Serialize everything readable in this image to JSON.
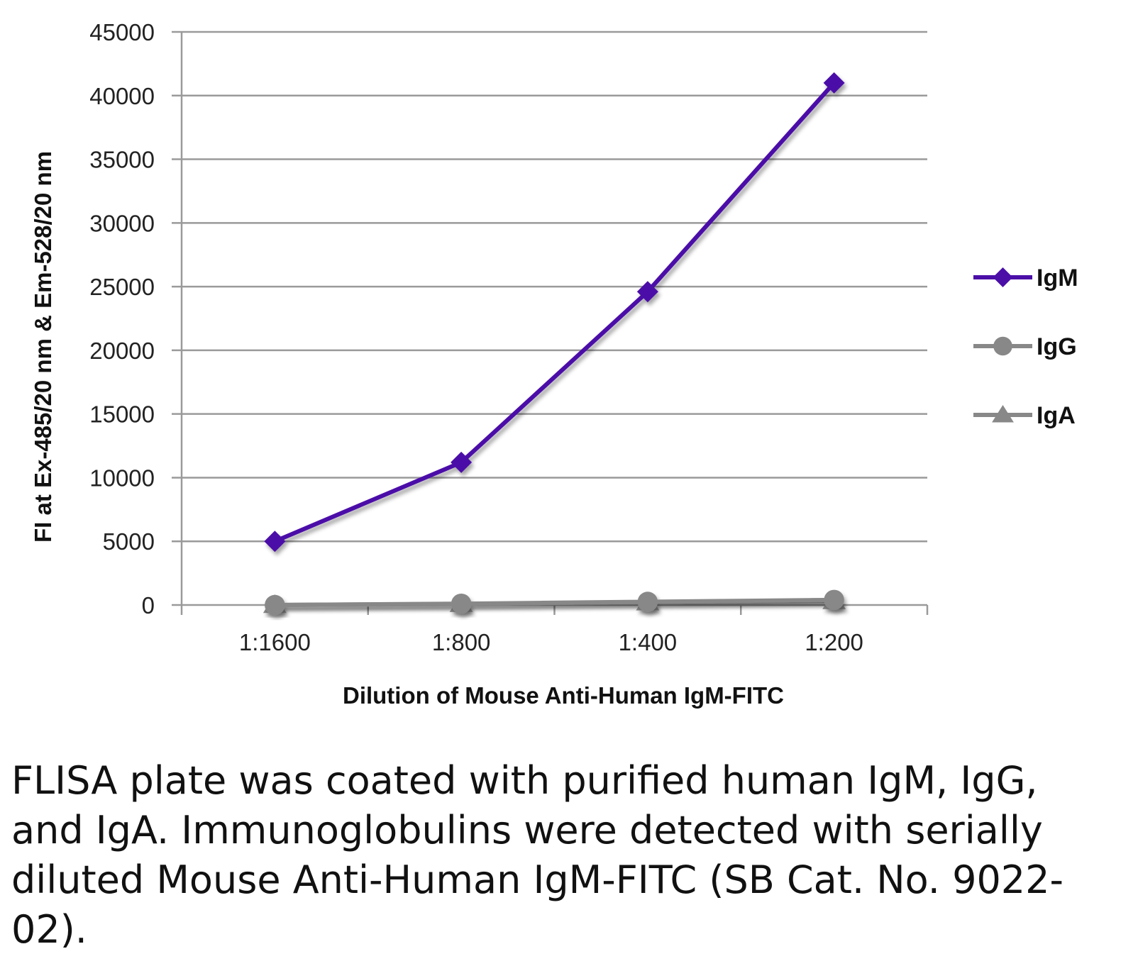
{
  "chart_data": {
    "type": "line",
    "title": "",
    "xlabel": "Dilution of Mouse Anti-Human IgM-FITC",
    "ylabel": "FI at Ex-485/20 nm & Em-528/20 nm",
    "categories": [
      "1:1600",
      "1:800",
      "1:400",
      "1:200"
    ],
    "ylim": [
      0,
      45000
    ],
    "yticks": [
      0,
      5000,
      10000,
      15000,
      20000,
      25000,
      30000,
      35000,
      40000,
      45000
    ],
    "grid": true,
    "legend_position": "right",
    "series": [
      {
        "name": "IgM",
        "values": [
          5000,
          11200,
          24600,
          41000
        ],
        "color": "#4B0FA8",
        "marker": "diamond"
      },
      {
        "name": "IgG",
        "values": [
          0,
          100,
          250,
          400
        ],
        "color": "#888888",
        "marker": "circle"
      },
      {
        "name": "IgA",
        "values": [
          0,
          80,
          200,
          300
        ],
        "color": "#888888",
        "marker": "triangle"
      }
    ]
  },
  "caption": "FLISA plate was coated with purified human IgM, IgG, and IgA.  Immunoglobulins were detected with serially diluted Mouse Anti-Human IgM-FITC (SB Cat. No. 9022-02)."
}
